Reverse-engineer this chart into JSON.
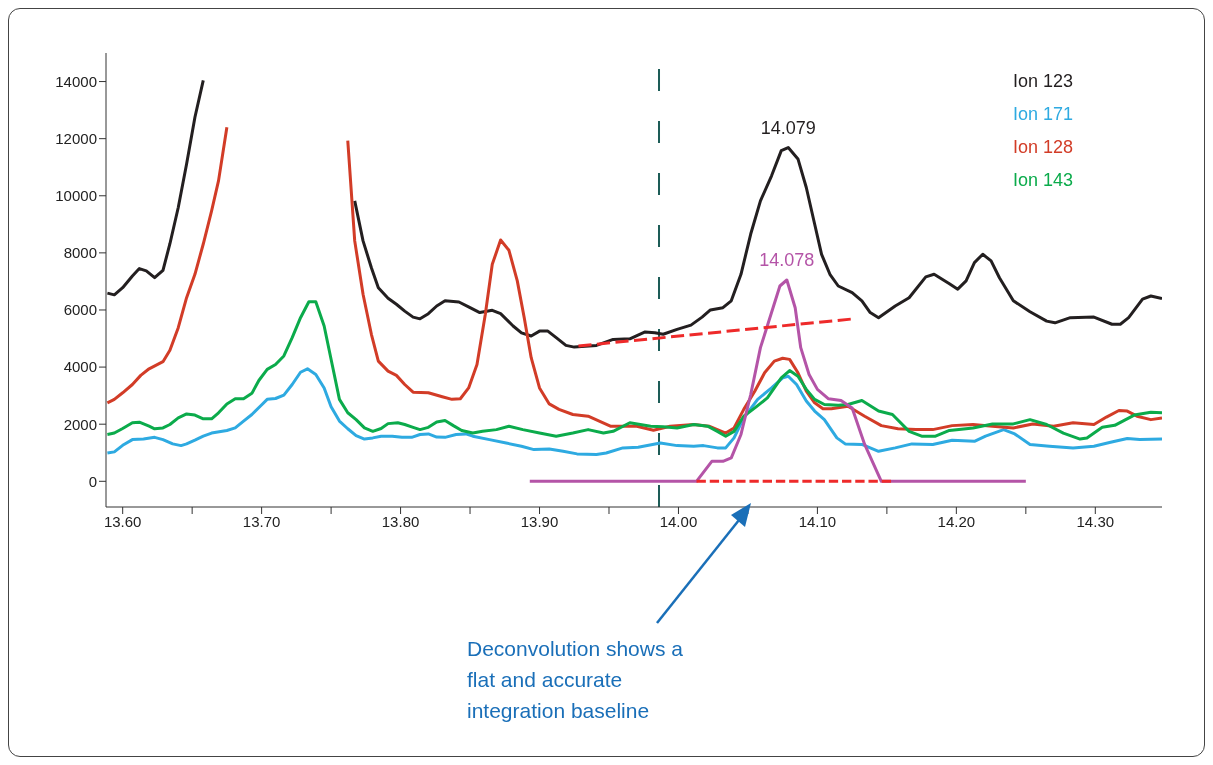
{
  "chart_data": {
    "type": "line",
    "xlim": [
      13.588,
      14.348
    ],
    "xticks": [
      {
        "value": 13.6,
        "label": "13.60"
      },
      {
        "value": 13.65,
        "label": null
      },
      {
        "value": 13.7,
        "label": "13.70"
      },
      {
        "value": 13.75,
        "label": null
      },
      {
        "value": 13.8,
        "label": "13.80"
      },
      {
        "value": 13.85,
        "label": null
      },
      {
        "value": 13.9,
        "label": "13.90"
      },
      {
        "value": 13.95,
        "label": null
      },
      {
        "value": 14.0,
        "label": "14.00"
      },
      {
        "value": 14.05,
        "label": null
      },
      {
        "value": 14.1,
        "label": "14.10"
      },
      {
        "value": 14.15,
        "label": null
      },
      {
        "value": 14.2,
        "label": "14.20"
      },
      {
        "value": 14.25,
        "label": null
      },
      {
        "value": 14.3,
        "label": "14.30"
      }
    ],
    "ylim": [
      -900,
      15000
    ],
    "yticks": [
      0,
      2000,
      4000,
      6000,
      8000,
      10000,
      12000,
      14000
    ],
    "legend": "top right",
    "line_style": "solid",
    "series": [
      {
        "name": "Ion 123",
        "color": "#231f20",
        "x": [
          13.589,
          13.594,
          13.6,
          13.607,
          13.612,
          13.617,
          13.623,
          13.629,
          13.634,
          13.64,
          13.646,
          13.652,
          13.658,
          13.665,
          13.7,
          13.758,
          13.767,
          13.773,
          13.779,
          13.784,
          13.791,
          13.797,
          13.803,
          13.809,
          13.814,
          13.82,
          13.826,
          13.832,
          13.842,
          13.85,
          13.857,
          13.866,
          13.872,
          13.881,
          13.887,
          13.894,
          13.9,
          13.906,
          13.912,
          13.919,
          13.925,
          13.941,
          13.953,
          13.965,
          13.976,
          13.983,
          13.989,
          13.999,
          14.009,
          14.017,
          14.023,
          14.032,
          14.038,
          14.045,
          14.052,
          14.059,
          14.067,
          14.074,
          14.079,
          14.086,
          14.092,
          14.098,
          14.103,
          14.109,
          14.115,
          14.125,
          14.132,
          14.138,
          14.144,
          14.156,
          14.166,
          14.178,
          14.184,
          14.195,
          14.201,
          14.207,
          14.213,
          14.219,
          14.225,
          14.231,
          14.241,
          14.253,
          14.265,
          14.271,
          14.282,
          14.299,
          14.312,
          14.318,
          14.324,
          14.334,
          14.34,
          14.348
        ],
        "values": [
          6590,
          6530,
          6780,
          7190,
          7450,
          7370,
          7130,
          7390,
          8320,
          9590,
          11110,
          12750,
          14040,
          null,
          null,
          null,
          9820,
          8420,
          7480,
          6780,
          6410,
          6200,
          5960,
          5750,
          5690,
          5870,
          6140,
          6320,
          6280,
          6080,
          5910,
          5990,
          5870,
          5440,
          5200,
          5090,
          5260,
          5260,
          5030,
          4760,
          4700,
          4760,
          4970,
          4990,
          5230,
          5200,
          5150,
          5320,
          5470,
          5750,
          6000,
          6080,
          6320,
          7250,
          8660,
          9820,
          10700,
          11580,
          11690,
          11290,
          10290,
          9010,
          7950,
          7250,
          6840,
          6610,
          6320,
          5910,
          5730,
          6140,
          6430,
          7160,
          7250,
          6920,
          6730,
          7020,
          7660,
          7950,
          7720,
          7130,
          6320,
          5940,
          5610,
          5550,
          5730,
          5750,
          5500,
          5500,
          5730,
          6380,
          6490,
          6400
        ]
      },
      {
        "name": "Ion 171",
        "color": "#2eaae1",
        "x": [
          13.589,
          13.594,
          13.6,
          13.607,
          13.615,
          13.623,
          13.629,
          13.636,
          13.642,
          13.646,
          13.652,
          13.658,
          13.664,
          13.675,
          13.681,
          13.687,
          13.693,
          13.699,
          13.704,
          13.71,
          13.716,
          13.722,
          13.728,
          13.733,
          13.739,
          13.745,
          13.75,
          13.756,
          13.762,
          13.768,
          13.774,
          13.78,
          13.786,
          13.794,
          13.801,
          13.808,
          13.814,
          13.82,
          13.826,
          13.832,
          13.84,
          13.847,
          13.852,
          13.864,
          13.876,
          13.887,
          13.896,
          13.907,
          13.917,
          13.927,
          13.941,
          13.948,
          13.96,
          13.971,
          13.987,
          13.999,
          14.011,
          14.018,
          14.028,
          14.034,
          14.04,
          14.047,
          14.057,
          14.067,
          14.075,
          14.079,
          14.085,
          14.092,
          14.098,
          14.105,
          14.114,
          14.12,
          14.132,
          14.144,
          14.156,
          14.168,
          14.183,
          14.197,
          14.213,
          14.221,
          14.234,
          14.242,
          14.253,
          14.267,
          14.284,
          14.299,
          14.311,
          14.323,
          14.332,
          14.348
        ],
        "values": [
          990,
          1030,
          1260,
          1460,
          1480,
          1540,
          1460,
          1310,
          1250,
          1310,
          1440,
          1580,
          1690,
          1780,
          1870,
          2110,
          2340,
          2630,
          2870,
          2900,
          3020,
          3390,
          3820,
          3940,
          3740,
          3270,
          2610,
          2110,
          1840,
          1600,
          1480,
          1520,
          1580,
          1580,
          1540,
          1540,
          1640,
          1660,
          1550,
          1540,
          1640,
          1660,
          1580,
          1460,
          1340,
          1230,
          1110,
          1130,
          1050,
          960,
          940,
          990,
          1170,
          1190,
          1340,
          1250,
          1230,
          1250,
          1170,
          1170,
          1520,
          2220,
          2870,
          3270,
          3620,
          3680,
          3390,
          2810,
          2460,
          2160,
          1520,
          1310,
          1290,
          1050,
          1170,
          1310,
          1290,
          1440,
          1400,
          1580,
          1810,
          1660,
          1290,
          1230,
          1170,
          1230,
          1370,
          1500,
          1460,
          1480
        ]
      },
      {
        "name": "Ion 128",
        "color": "#d23c27",
        "x": [
          13.589,
          13.594,
          13.6,
          13.607,
          13.613,
          13.619,
          13.629,
          13.634,
          13.64,
          13.646,
          13.652,
          13.658,
          13.664,
          13.669,
          13.675,
          13.68,
          13.72,
          13.76,
          13.762,
          13.767,
          13.773,
          13.779,
          13.784,
          13.791,
          13.797,
          13.803,
          13.809,
          13.82,
          13.83,
          13.837,
          13.843,
          13.849,
          13.855,
          13.861,
          13.866,
          13.872,
          13.878,
          13.884,
          13.889,
          13.894,
          13.9,
          13.907,
          13.914,
          13.924,
          13.935,
          13.943,
          13.951,
          13.959,
          13.97,
          13.982,
          13.994,
          14.011,
          14.022,
          14.034,
          14.04,
          14.047,
          14.055,
          14.062,
          14.069,
          14.075,
          14.08,
          14.086,
          14.092,
          14.098,
          14.104,
          14.11,
          14.122,
          14.134,
          14.146,
          14.158,
          14.171,
          14.183,
          14.197,
          14.212,
          14.226,
          14.241,
          14.255,
          14.27,
          14.284,
          14.299,
          14.308,
          14.317,
          14.323,
          14.33,
          14.34,
          14.348
        ],
        "values": [
          2750,
          2870,
          3100,
          3390,
          3710,
          3940,
          4190,
          4590,
          5380,
          6430,
          7250,
          8310,
          9470,
          10530,
          12400,
          null,
          null,
          null,
          11930,
          8420,
          6550,
          5150,
          4210,
          3860,
          3710,
          3390,
          3120,
          3100,
          2960,
          2870,
          2890,
          3270,
          4090,
          5850,
          7600,
          8450,
          8090,
          7020,
          5730,
          4330,
          3270,
          2710,
          2520,
          2340,
          2280,
          2110,
          1930,
          1930,
          1930,
          1790,
          1930,
          1990,
          1930,
          1690,
          1870,
          2520,
          3160,
          3800,
          4210,
          4310,
          4270,
          3800,
          3160,
          2750,
          2540,
          2540,
          2630,
          2280,
          1950,
          1840,
          1810,
          1810,
          1950,
          1990,
          1930,
          1870,
          2010,
          1930,
          2050,
          1990,
          2250,
          2480,
          2460,
          2280,
          2160,
          2220
        ]
      },
      {
        "name": "Ion 143",
        "color": "#0bab4b",
        "x": [
          13.589,
          13.594,
          13.6,
          13.607,
          13.612,
          13.619,
          13.623,
          13.629,
          13.634,
          13.64,
          13.646,
          13.652,
          13.658,
          13.664,
          13.669,
          13.675,
          13.681,
          13.687,
          13.693,
          13.698,
          13.704,
          13.71,
          13.716,
          13.722,
          13.728,
          13.734,
          13.739,
          13.745,
          13.751,
          13.756,
          13.762,
          13.768,
          13.774,
          13.78,
          13.786,
          13.791,
          13.798,
          13.803,
          13.809,
          13.814,
          13.82,
          13.826,
          13.832,
          13.838,
          13.844,
          13.852,
          13.859,
          13.869,
          13.878,
          13.888,
          13.9,
          13.912,
          13.924,
          13.935,
          13.946,
          13.953,
          13.965,
          13.98,
          13.989,
          13.999,
          14.011,
          14.021,
          14.028,
          14.034,
          14.04,
          14.047,
          14.055,
          14.064,
          14.074,
          14.08,
          14.086,
          14.092,
          14.098,
          14.105,
          14.115,
          14.122,
          14.132,
          14.144,
          14.154,
          14.166,
          14.175,
          14.185,
          14.195,
          14.212,
          14.226,
          14.241,
          14.253,
          14.265,
          14.277,
          14.289,
          14.294,
          14.305,
          14.314,
          14.328,
          14.34,
          14.348
        ],
        "values": [
          1640,
          1690,
          1850,
          2050,
          2070,
          1930,
          1840,
          1870,
          1990,
          2220,
          2360,
          2320,
          2190,
          2190,
          2400,
          2710,
          2890,
          2890,
          3080,
          3530,
          3920,
          4090,
          4390,
          5030,
          5730,
          6290,
          6290,
          5440,
          4040,
          2870,
          2400,
          2160,
          1870,
          1750,
          1850,
          2020,
          2050,
          1990,
          1890,
          1810,
          1890,
          2080,
          2130,
          1950,
          1780,
          1690,
          1750,
          1810,
          1930,
          1810,
          1690,
          1580,
          1690,
          1810,
          1690,
          1750,
          2050,
          1930,
          1910,
          1870,
          1990,
          1930,
          1750,
          1580,
          1750,
          2280,
          2570,
          2920,
          3620,
          3880,
          3680,
          3220,
          2870,
          2690,
          2660,
          2690,
          2830,
          2460,
          2340,
          1750,
          1580,
          1580,
          1780,
          1870,
          2010,
          2010,
          2160,
          1990,
          1690,
          1480,
          1520,
          1890,
          1960,
          2320,
          2420,
          2400
        ]
      },
      {
        "color": "#b454a7",
        "x": [
          13.893,
          14.013,
          14.024,
          14.032,
          14.038,
          14.045,
          14.052,
          14.059,
          14.073,
          14.078,
          14.084,
          14.088,
          14.094,
          14.1,
          14.108,
          14.117,
          14.125,
          14.134,
          14.146,
          14.25
        ],
        "values": [
          0,
          0,
          700,
          700,
          820,
          1640,
          3040,
          4680,
          6840,
          7050,
          6080,
          4680,
          3740,
          3220,
          2890,
          2830,
          2570,
          1290,
          0,
          0
        ]
      },
      {
        "color": "#ee2a2a",
        "line_style": "dashed",
        "x": [
          13.928,
          14.124
        ],
        "values": [
          4740,
          5680
        ]
      },
      {
        "color": "#ee2a2a",
        "line_style": "dashed",
        "x": [
          14.013,
          14.153
        ],
        "values": [
          0,
          0
        ]
      }
    ],
    "ref_lines": [
      {
        "axis": "x",
        "value": 13.986,
        "color": "#1d5c57",
        "line_style": "dashed"
      }
    ],
    "annotations": [
      {
        "text": "14.079",
        "x": 14.079,
        "y": 11690
      },
      {
        "text": "14.078",
        "x": 14.078,
        "y": 7050
      },
      "Deconvolution shows a flat and accurate integration baseline"
    ]
  }
}
